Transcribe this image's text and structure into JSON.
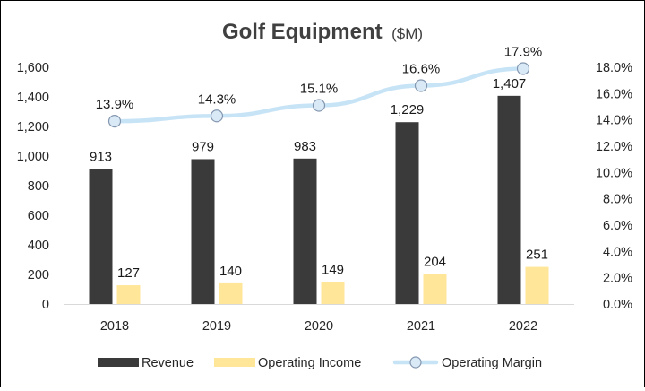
{
  "chart_data": {
    "type": "bar",
    "title": "Golf Equipment",
    "subtitle": "($M)",
    "categories": [
      "2018",
      "2019",
      "2020",
      "2021",
      "2022"
    ],
    "series": [
      {
        "name": "Revenue",
        "kind": "bar",
        "axis": "left",
        "color": "#3a3a3a",
        "values": [
          913,
          979,
          983,
          1229,
          1407
        ],
        "labels": [
          "913",
          "979",
          "983",
          "1,229",
          "1,407"
        ]
      },
      {
        "name": "Operating Income",
        "kind": "bar",
        "axis": "left",
        "color": "#ffe699",
        "values": [
          127,
          140,
          149,
          204,
          251
        ],
        "labels": [
          "127",
          "140",
          "149",
          "204",
          "251"
        ]
      },
      {
        "name": "Operating Margin",
        "kind": "line",
        "axis": "right",
        "color": "#c7e3f6",
        "marker_fill": "#d9e9f5",
        "marker_stroke": "#8497b0",
        "values": [
          13.9,
          14.3,
          15.1,
          16.6,
          17.9
        ],
        "labels": [
          "13.9%",
          "14.3%",
          "15.1%",
          "16.6%",
          "17.9%"
        ]
      }
    ],
    "y_left": {
      "min": 0,
      "max": 1600,
      "step": 200,
      "ticks": [
        "0",
        "200",
        "400",
        "600",
        "800",
        "1,000",
        "1,200",
        "1,400",
        "1,600"
      ]
    },
    "y_right": {
      "min": 0,
      "max": 18,
      "step": 2,
      "ticks": [
        "0.0%",
        "2.0%",
        "4.0%",
        "6.0%",
        "8.0%",
        "10.0%",
        "12.0%",
        "14.0%",
        "16.0%",
        "18.0%"
      ]
    },
    "grid": false,
    "legend_position": "bottom"
  }
}
